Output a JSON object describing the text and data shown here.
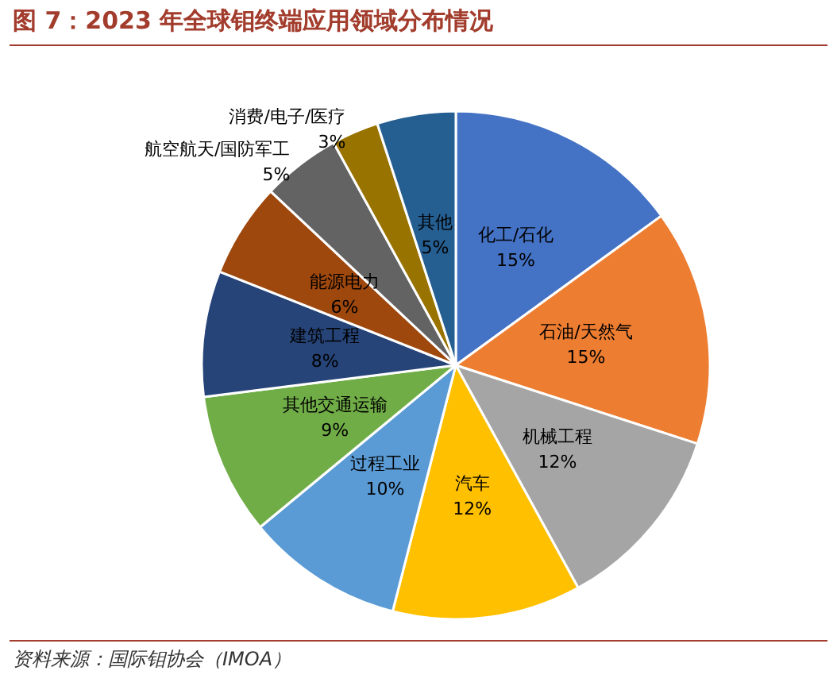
{
  "chart_data": {
    "type": "pie",
    "title": "图 7：2023 年全球钼终端应用领域分布情况",
    "categories": [
      "化工/石化",
      "石油/天然气",
      "机械工程",
      "汽车",
      "过程工业",
      "其他交通运输",
      "建筑工程",
      "能源电力",
      "航空航天/国防军工",
      "消费/电子/医疗",
      "其他"
    ],
    "values": [
      15,
      15,
      12,
      12,
      10,
      9,
      8,
      6,
      5,
      3,
      5
    ],
    "value_labels": [
      "15%",
      "15%",
      "12%",
      "12%",
      "10%",
      "9%",
      "8%",
      "6%",
      "5%",
      "3%",
      "5%"
    ],
    "colors": [
      "#4472c4",
      "#ed7d31",
      "#a5a5a5",
      "#ffc000",
      "#5b9bd5",
      "#70ad47",
      "#264478",
      "#9e480e",
      "#636363",
      "#997300",
      "#255e91"
    ],
    "legend": false,
    "annotations": [
      "资料来源：国际钼协会（IMOA）"
    ]
  }
}
